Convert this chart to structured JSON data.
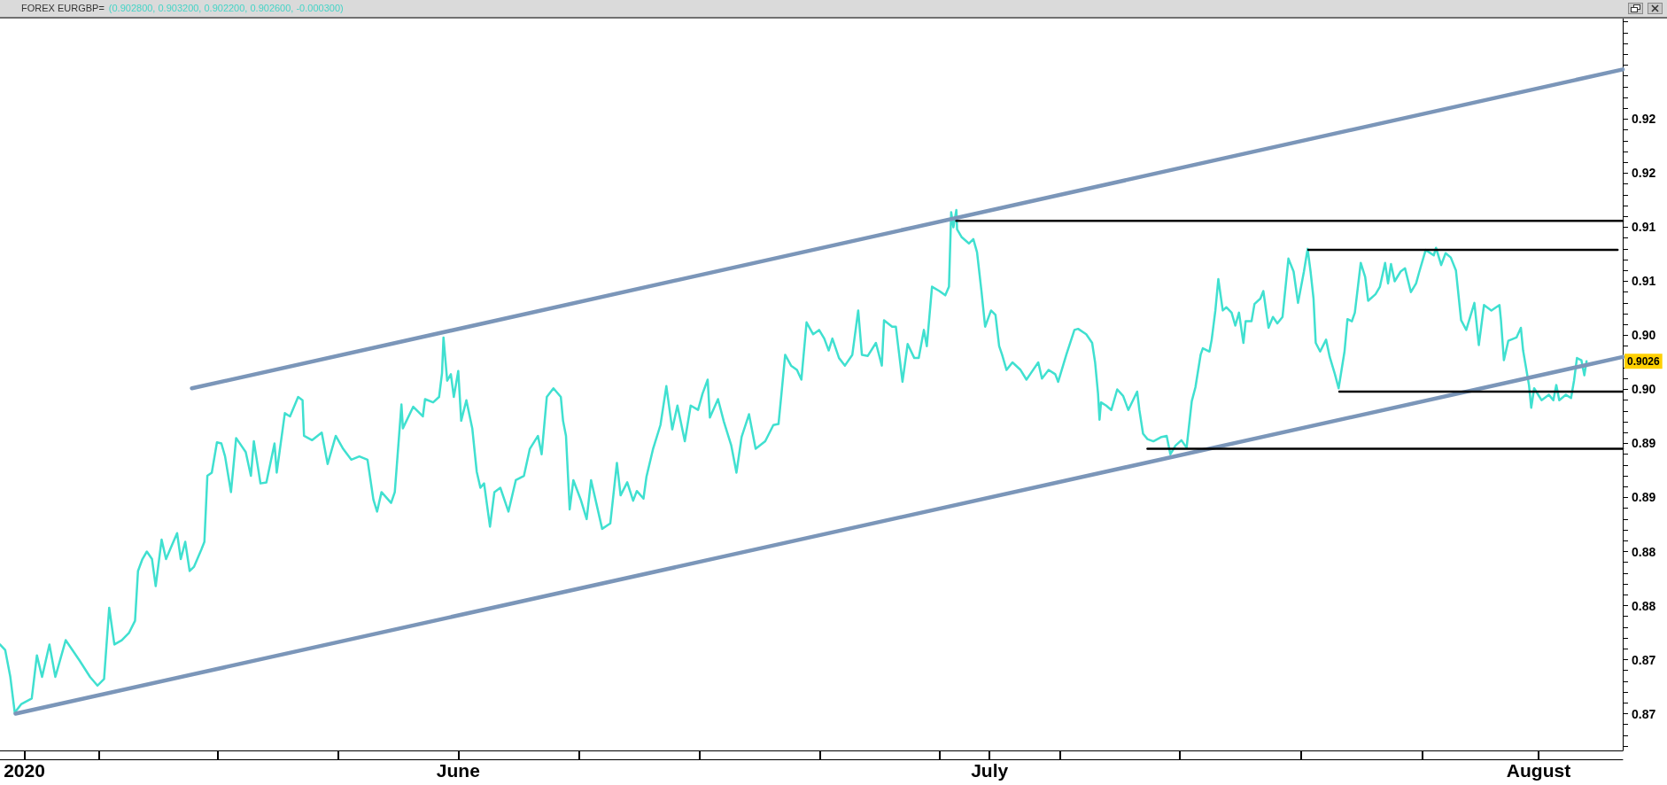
{
  "chart_data": {
    "type": "line",
    "title": "FOREX EURGBP=",
    "subtitle": "(0.902800, 0.903200, 0.902200, 0.902600, -0.000300)",
    "xlim": [
      "2020-05-06T03:00",
      "2020-08-05T18:00"
    ],
    "xticks": [
      {
        "value": "2020-05-07T12:00",
        "label": "2020"
      },
      {
        "value": "2020-05-11T17:00",
        "label": null
      },
      {
        "value": "2020-05-18T10:00",
        "label": null
      },
      {
        "value": "2020-05-25T05:00",
        "label": null
      },
      {
        "value": "2020-06-01",
        "label": "June"
      },
      {
        "value": "2020-06-07T20:00",
        "label": null
      },
      {
        "value": "2020-06-14T15:00",
        "label": null
      },
      {
        "value": "2020-06-21T10:00",
        "label": null
      },
      {
        "value": "2020-06-28T04:00",
        "label": null
      },
      {
        "value": "2020-07-01",
        "label": "July"
      },
      {
        "value": "2020-07-04T23:00",
        "label": null
      },
      {
        "value": "2020-07-11T18:00",
        "label": null
      },
      {
        "value": "2020-07-18T14:00",
        "label": null
      },
      {
        "value": "2020-07-25T10:00",
        "label": null
      },
      {
        "value": "2020-08-01",
        "label": "August"
      }
    ],
    "ylim": [
      0.8666,
      0.9343
    ],
    "yticks": [
      {
        "value": 0.867,
        "label": null
      },
      {
        "value": 0.868,
        "label": null
      },
      {
        "value": 0.869,
        "label": null
      },
      0.87,
      {
        "value": 0.871,
        "label": null
      },
      {
        "value": 0.872,
        "label": null
      },
      {
        "value": 0.873,
        "label": null
      },
      {
        "value": 0.874,
        "label": null
      },
      {
        "value": 0.875,
        "label": "0.87"
      },
      {
        "value": 0.876,
        "label": null
      },
      {
        "value": 0.877,
        "label": null
      },
      {
        "value": 0.878,
        "label": null
      },
      {
        "value": 0.879,
        "label": null
      },
      0.88,
      {
        "value": 0.881,
        "label": null
      },
      {
        "value": 0.882,
        "label": null
      },
      {
        "value": 0.883,
        "label": null
      },
      {
        "value": 0.884,
        "label": null
      },
      {
        "value": 0.885,
        "label": "0.88"
      },
      {
        "value": 0.886,
        "label": null
      },
      {
        "value": 0.887,
        "label": null
      },
      {
        "value": 0.888,
        "label": null
      },
      {
        "value": 0.889,
        "label": null
      },
      0.89,
      {
        "value": 0.891,
        "label": null
      },
      {
        "value": 0.892,
        "label": null
      },
      {
        "value": 0.893,
        "label": null
      },
      {
        "value": 0.894,
        "label": null
      },
      {
        "value": 0.895,
        "label": "0.89"
      },
      {
        "value": 0.896,
        "label": null
      },
      {
        "value": 0.897,
        "label": null
      },
      {
        "value": 0.898,
        "label": null
      },
      {
        "value": 0.899,
        "label": null
      },
      {
        "value": 0.9,
        "label": "0.90"
      },
      {
        "value": 0.901,
        "label": null
      },
      {
        "value": 0.902,
        "label": null
      },
      {
        "value": 0.903,
        "label": null
      },
      {
        "value": 0.904,
        "label": null
      },
      {
        "value": 0.905,
        "label": "0.90"
      },
      {
        "value": 0.906,
        "label": null
      },
      {
        "value": 0.907,
        "label": null
      },
      {
        "value": 0.908,
        "label": null
      },
      {
        "value": 0.909,
        "label": null
      },
      0.91,
      {
        "value": 0.911,
        "label": null
      },
      {
        "value": 0.912,
        "label": null
      },
      {
        "value": 0.913,
        "label": null
      },
      {
        "value": 0.914,
        "label": null
      },
      {
        "value": 0.915,
        "label": "0.91"
      },
      {
        "value": 0.916,
        "label": null
      },
      {
        "value": 0.917,
        "label": null
      },
      {
        "value": 0.918,
        "label": null
      },
      {
        "value": 0.919,
        "label": null
      },
      0.92,
      {
        "value": 0.921,
        "label": null
      },
      {
        "value": 0.922,
        "label": null
      },
      {
        "value": 0.923,
        "label": null
      },
      {
        "value": 0.924,
        "label": null
      },
      {
        "value": 0.925,
        "label": "0.92"
      },
      {
        "value": 0.926,
        "label": null
      },
      {
        "value": 0.927,
        "label": null
      },
      {
        "value": 0.928,
        "label": null
      },
      {
        "value": 0.929,
        "label": null
      },
      {
        "value": 0.93,
        "label": null
      },
      {
        "value": 0.931,
        "label": null
      },
      {
        "value": 0.932,
        "label": null
      },
      {
        "value": 0.933,
        "label": null
      },
      {
        "value": 0.934,
        "label": null
      }
    ],
    "marker": "none",
    "line_style": "solid",
    "annotations": [
      {
        "text": "0.9026",
        "y": 0.9026
      }
    ],
    "series": [
      {
        "color": "#40e0d0",
        "x": [
          "2020-05-06T03:00",
          "2020-05-06T10:00",
          "2020-05-06T17:00",
          "2020-05-06T23:00",
          "2020-05-07T08:00",
          "2020-05-07T22:00",
          "2020-05-08T05:00",
          "2020-05-08T12:00",
          "2020-05-08T22:00",
          "2020-05-09T06:00",
          "2020-05-09T20:00",
          "2020-05-10T05:00",
          "2020-05-10T15:00",
          "2020-05-11T05:00",
          "2020-05-11T15:00",
          "2020-05-12T00:00",
          "2020-05-12T07:00",
          "2020-05-12T14:00",
          "2020-05-13T00:00",
          "2020-05-13T10:00",
          "2020-05-13T18:00",
          "2020-05-13T22:00",
          "2020-05-14T04:00",
          "2020-05-14T10:00",
          "2020-05-14T17:00",
          "2020-05-14T22:00",
          "2020-05-15T06:00",
          "2020-05-15T12:00",
          "2020-05-15T20:00",
          "2020-05-16T03:00",
          "2020-05-16T08:00",
          "2020-05-16T14:00",
          "2020-05-16T20:00",
          "2020-05-17T02:00",
          "2020-05-17T12:00",
          "2020-05-17T16:00",
          "2020-05-17T20:00",
          "2020-05-18T02:00",
          "2020-05-18T09:00",
          "2020-05-18T15:00",
          "2020-05-18T20:00",
          "2020-05-19T04:00",
          "2020-05-19T11:00",
          "2020-05-20T00:00",
          "2020-05-20T07:00",
          "2020-05-20T11:00",
          "2020-05-20T20:00",
          "2020-05-21T04:00",
          "2020-05-21T15:00",
          "2020-05-21T18:00",
          "2020-05-22T05:00",
          "2020-05-22T12:00",
          "2020-05-22T23:00",
          "2020-05-23T05:00",
          "2020-05-23T07:00",
          "2020-05-23T18:00",
          "2020-05-24T07:00",
          "2020-05-24T15:00",
          "2020-05-25T02:00",
          "2020-05-25T12:00",
          "2020-05-25T23:00",
          "2020-05-26T10:00",
          "2020-05-26T21:00",
          "2020-05-27T05:00",
          "2020-05-27T10:00",
          "2020-05-27T16:00",
          "2020-05-28T05:00",
          "2020-05-28T10:00",
          "2020-05-28T19:00",
          "2020-05-28T21:00",
          "2020-05-29T11:00",
          "2020-05-30T00:00",
          "2020-05-30T03:00",
          "2020-05-30T14:00",
          "2020-05-30T22:00",
          "2020-05-31T02:00",
          "2020-05-31T04:00",
          "2020-05-31T09:00",
          "2020-05-31T14:00",
          "2020-05-31T18:00",
          "2020-06-01T00:00",
          "2020-06-01T04:00",
          "2020-06-01T11:00",
          "2020-06-01T19:00",
          "2020-06-02T01:00",
          "2020-06-02T06:00",
          "2020-06-02T11:00",
          "2020-06-02T19:00",
          "2020-06-03T01:00",
          "2020-06-03T09:00",
          "2020-06-03T20:00",
          "2020-06-04T06:00",
          "2020-06-04T17:00",
          "2020-06-05T01:00",
          "2020-06-05T12:00",
          "2020-06-05T17:00",
          "2020-06-06T00:00",
          "2020-06-06T09:00",
          "2020-06-06T19:00",
          "2020-06-06T22:00",
          "2020-06-07T02:00",
          "2020-06-07T07:00",
          "2020-06-07T12:00",
          "2020-06-07T22:00",
          "2020-06-08T06:00",
          "2020-06-08T12:00",
          "2020-06-08T19:00",
          "2020-06-09T03:00",
          "2020-06-09T14:00",
          "2020-06-09T23:00",
          "2020-06-10T04:00",
          "2020-06-10T13:00",
          "2020-06-10T21:00",
          "2020-06-11T02:00",
          "2020-06-11T11:00",
          "2020-06-11T15:00",
          "2020-06-12T00:00",
          "2020-06-12T10:00",
          "2020-06-12T18:00",
          "2020-06-13T02:00",
          "2020-06-13T09:00",
          "2020-06-13T19:00",
          "2020-06-14T03:00",
          "2020-06-14T13:00",
          "2020-06-14T19:00",
          "2020-06-15T02:00",
          "2020-06-15T05:00",
          "2020-06-15T16:00",
          "2020-06-16T00:00",
          "2020-06-16T10:00",
          "2020-06-16T17:00",
          "2020-06-17T00:00",
          "2020-06-17T10:00",
          "2020-06-17T19:00",
          "2020-06-18T08:00",
          "2020-06-18T19:00",
          "2020-06-19T02:00",
          "2020-06-19T06:00",
          "2020-06-19T11:00",
          "2020-06-19T19:00",
          "2020-06-20T03:00",
          "2020-06-20T09:00",
          "2020-06-20T16:00",
          "2020-06-21T01:00",
          "2020-06-21T09:00",
          "2020-06-21T16:00",
          "2020-06-21T22:00",
          "2020-06-22T03:00",
          "2020-06-22T12:00",
          "2020-06-22T20:00",
          "2020-06-23T06:00",
          "2020-06-23T14:00",
          "2020-06-23T19:00",
          "2020-06-24T03:00",
          "2020-06-24T14:00",
          "2020-06-24T22:00",
          "2020-06-25T01:00",
          "2020-06-25T12:00",
          "2020-06-25T17:00",
          "2020-06-26T02:00",
          "2020-06-26T09:00",
          "2020-06-26T18:00",
          "2020-06-27T00:00",
          "2020-06-27T07:00",
          "2020-06-27T11:00",
          "2020-06-27T18:00",
          "2020-06-28T04:00",
          "2020-06-28T12:00",
          "2020-06-28T17:00",
          "2020-06-28T20:00",
          "2020-06-28T23:00",
          "2020-06-29T03:00",
          "2020-06-29T04:00",
          "2020-06-29T10:00",
          "2020-06-29T20:00",
          "2020-06-30T02:00",
          "2020-06-30T07:00",
          "2020-06-30T13:00",
          "2020-06-30T18:00",
          "2020-07-01T02:00",
          "2020-07-01T08:00",
          "2020-07-01T13:00",
          "2020-07-01T17:00",
          "2020-07-01T23:00",
          "2020-07-02T07:00",
          "2020-07-02T18:00",
          "2020-07-03T02:00",
          "2020-07-03T07:00",
          "2020-07-03T18:00",
          "2020-07-03T23:00",
          "2020-07-04T08:00",
          "2020-07-04T17:00",
          "2020-07-04T21:00",
          "2020-07-05T08:00",
          "2020-07-05T19:00",
          "2020-07-06T00:00",
          "2020-07-06T11:00",
          "2020-07-06T19:00",
          "2020-07-06T23:00",
          "2020-07-07T03:00",
          "2020-07-07T05:00",
          "2020-07-07T07:00",
          "2020-07-07T14:00",
          "2020-07-07T21:00",
          "2020-07-08T05:00",
          "2020-07-08T13:00",
          "2020-07-08T20:00",
          "2020-07-09T08:00",
          "2020-07-09T11:00",
          "2020-07-09T16:00",
          "2020-07-09T22:00",
          "2020-07-10T06:00",
          "2020-07-10T17:00",
          "2020-07-11T00:00",
          "2020-07-11T05:00",
          "2020-07-11T12:00",
          "2020-07-11T20:00",
          "2020-07-12T03:00",
          "2020-07-12T10:00",
          "2020-07-12T15:00",
          "2020-07-12T22:00",
          "2020-07-13T01:00",
          "2020-07-13T10:00",
          "2020-07-13T13:00",
          "2020-07-13T18:00",
          "2020-07-13T22:00",
          "2020-07-14T04:00",
          "2020-07-14T09:00",
          "2020-07-14T16:00",
          "2020-07-14T21:00",
          "2020-07-15T02:00",
          "2020-07-15T08:00",
          "2020-07-15T11:00",
          "2020-07-15T19:00",
          "2020-07-15T23:00",
          "2020-07-16T07:00",
          "2020-07-16T11:00",
          "2020-07-16T18:00",
          "2020-07-17T00:00",
          "2020-07-17T06:00",
          "2020-07-17T13:00",
          "2020-07-17T21:00",
          "2020-07-18T04:00",
          "2020-07-18T10:00",
          "2020-07-18T18:00",
          "2020-07-18T23:00",
          "2020-07-19T03:00",
          "2020-07-19T07:00",
          "2020-07-19T10:00",
          "2020-07-19T16:00",
          "2020-07-20T00:00",
          "2020-07-20T05:00",
          "2020-07-20T12:00",
          "2020-07-20T17:00",
          "2020-07-20T21:00",
          "2020-07-21T01:00",
          "2020-07-21T05:00",
          "2020-07-21T11:00",
          "2020-07-21T15:00",
          "2020-07-21T23:00",
          "2020-07-22T05:00",
          "2020-07-22T09:00",
          "2020-07-22T19:00",
          "2020-07-23T01:00",
          "2020-07-23T08:00",
          "2020-07-23T12:00",
          "2020-07-23T16:00",
          "2020-07-23T21:00",
          "2020-07-24T05:00",
          "2020-07-24T11:00",
          "2020-07-24T19:00",
          "2020-07-25T02:00",
          "2020-07-25T06:00",
          "2020-07-25T15:00",
          "2020-07-26T02:00",
          "2020-07-26T05:00",
          "2020-07-26T12:00",
          "2020-07-26T18:00",
          "2020-07-27T01:00",
          "2020-07-27T08:00",
          "2020-07-27T15:00",
          "2020-07-27T22:00",
          "2020-07-28T09:00",
          "2020-07-28T15:00",
          "2020-07-28T22:00",
          "2020-07-29T08:00",
          "2020-07-29T19:00",
          "2020-07-29T21:00",
          "2020-07-30T01:00",
          "2020-07-30T07:00",
          "2020-07-30T18:00",
          "2020-07-31T00:00",
          "2020-07-31T03:00",
          "2020-07-31T11:00",
          "2020-07-31T14:00",
          "2020-07-31T18:00",
          "2020-08-01T04:00",
          "2020-08-01T14:00",
          "2020-08-01T20:00",
          "2020-08-02T00:00",
          "2020-08-02T04:00",
          "2020-08-02T13:00",
          "2020-08-02T20:00",
          "2020-08-03T00:00",
          "2020-08-03T04:00",
          "2020-08-03T10:00",
          "2020-08-03T14:00",
          "2020-08-03T17:00"
        ],
        "values": [
          0.8764,
          0.8759,
          0.8734,
          0.8701,
          0.8709,
          0.8714,
          0.8754,
          0.8734,
          0.8764,
          0.8734,
          0.8768,
          0.8759,
          0.8749,
          0.8734,
          0.8726,
          0.8732,
          0.8798,
          0.8764,
          0.8768,
          0.8775,
          0.8786,
          0.8832,
          0.8843,
          0.885,
          0.8843,
          0.8818,
          0.8861,
          0.8843,
          0.8856,
          0.8867,
          0.8843,
          0.8859,
          0.8832,
          0.8836,
          0.8852,
          0.8859,
          0.892,
          0.8923,
          0.8951,
          0.895,
          0.8938,
          0.8905,
          0.8955,
          0.8942,
          0.892,
          0.8952,
          0.8913,
          0.8914,
          0.895,
          0.8923,
          0.8978,
          0.8975,
          0.8993,
          0.899,
          0.8957,
          0.8953,
          0.896,
          0.8931,
          0.8957,
          0.8945,
          0.8935,
          0.8938,
          0.8935,
          0.8898,
          0.8887,
          0.8905,
          0.8895,
          0.8905,
          0.8986,
          0.8964,
          0.8984,
          0.8975,
          0.8991,
          0.8988,
          0.8993,
          0.9015,
          0.9048,
          0.9008,
          0.9014,
          0.8993,
          0.9017,
          0.8971,
          0.899,
          0.8964,
          0.8924,
          0.8909,
          0.8913,
          0.8873,
          0.8905,
          0.8909,
          0.8887,
          0.8916,
          0.892,
          0.8945,
          0.8957,
          0.894,
          0.8993,
          0.9001,
          0.8993,
          0.8971,
          0.8957,
          0.8889,
          0.8916,
          0.8898,
          0.888,
          0.8916,
          0.8895,
          0.8871,
          0.8876,
          0.8932,
          0.8902,
          0.8914,
          0.8897,
          0.8906,
          0.8899,
          0.8919,
          0.8945,
          0.8967,
          0.9003,
          0.8963,
          0.8985,
          0.8952,
          0.8985,
          0.8981,
          0.8996,
          0.9009,
          0.8974,
          0.8991,
          0.897,
          0.8948,
          0.8923,
          0.8956,
          0.8977,
          0.8945,
          0.8952,
          0.8967,
          0.8968,
          0.8996,
          0.9032,
          0.9022,
          0.9018,
          0.9009,
          0.9062,
          0.9051,
          0.9055,
          0.9047,
          0.9036,
          0.9047,
          0.9029,
          0.9022,
          0.9032,
          0.9073,
          0.9032,
          0.9031,
          0.9043,
          0.9022,
          0.9064,
          0.9058,
          0.9058,
          0.9007,
          0.9042,
          0.9029,
          0.9029,
          0.9055,
          0.904,
          0.9095,
          0.9091,
          0.9087,
          0.9095,
          0.9164,
          0.915,
          0.9166,
          0.9148,
          0.9141,
          0.9135,
          0.9139,
          0.9127,
          0.9091,
          0.9058,
          0.9073,
          0.9069,
          0.904,
          0.9032,
          0.9018,
          0.9025,
          0.9018,
          0.9009,
          0.9014,
          0.9025,
          0.901,
          0.9018,
          0.9014,
          0.9007,
          0.9032,
          0.9055,
          0.9056,
          0.9051,
          0.9043,
          0.9025,
          0.8996,
          0.8972,
          0.8988,
          0.8985,
          0.8981,
          0.9,
          0.8994,
          0.8981,
          0.8998,
          0.8981,
          0.8959,
          0.8954,
          0.8952,
          0.8956,
          0.8957,
          0.894,
          0.8948,
          0.8953,
          0.8946,
          0.8989,
          0.9002,
          0.9032,
          0.9038,
          0.9035,
          0.9046,
          0.9073,
          0.9102,
          0.9073,
          0.9076,
          0.9071,
          0.9059,
          0.9071,
          0.9043,
          0.9063,
          0.9063,
          0.9079,
          0.9084,
          0.9091,
          0.9057,
          0.9067,
          0.9061,
          0.9067,
          0.9121,
          0.9109,
          0.908,
          0.9109,
          0.913,
          0.9109,
          0.9084,
          0.9043,
          0.9035,
          0.9046,
          0.903,
          0.9014,
          0.9001,
          0.9018,
          0.9035,
          0.9065,
          0.9063,
          0.9071,
          0.9117,
          0.9104,
          0.9082,
          0.9088,
          0.9095,
          0.9117,
          0.9098,
          0.9116,
          0.91,
          0.9109,
          0.9112,
          0.909,
          0.9098,
          0.9108,
          0.9129,
          0.9124,
          0.9131,
          0.9115,
          0.9126,
          0.9122,
          0.911,
          0.9064,
          0.9055,
          0.908,
          0.9041,
          0.9078,
          0.9073,
          0.9078,
          0.9064,
          0.9027,
          0.9045,
          0.9048,
          0.9057,
          0.9036,
          0.9004,
          0.8983,
          0.9001,
          0.899,
          0.8995,
          0.899,
          0.9004,
          0.899,
          0.8995,
          0.8992,
          0.9008,
          0.9029,
          0.9027,
          0.9013,
          0.9026
        ]
      },
      {
        "color": "#7b96b9",
        "x": [
          "2020-05-16T23:00",
          "2020-08-05T18:00"
        ],
        "values": [
          0.9001,
          0.9296
        ]
      },
      {
        "color": "#7b96b9",
        "x": [
          "2020-05-07T00:00",
          "2020-08-05T18:00"
        ],
        "values": [
          0.87,
          0.903
        ]
      },
      {
        "color": "#000000",
        "x": [
          "2020-06-29T03:00",
          "2020-08-05T18:00"
        ],
        "values": [
          0.9156,
          0.9156
        ]
      },
      {
        "color": "#000000",
        "x": [
          "2020-07-19T00:00",
          "2020-08-05T11:00"
        ],
        "values": [
          0.9129,
          0.9129
        ]
      },
      {
        "color": "#000000",
        "x": [
          "2020-07-20T18:00",
          "2020-08-05T18:00"
        ],
        "values": [
          0.8998,
          0.8998
        ]
      },
      {
        "color": "#000000",
        "x": [
          "2020-07-09T22:00",
          "2020-08-05T18:00"
        ],
        "values": [
          0.8945,
          0.8945
        ]
      }
    ]
  }
}
